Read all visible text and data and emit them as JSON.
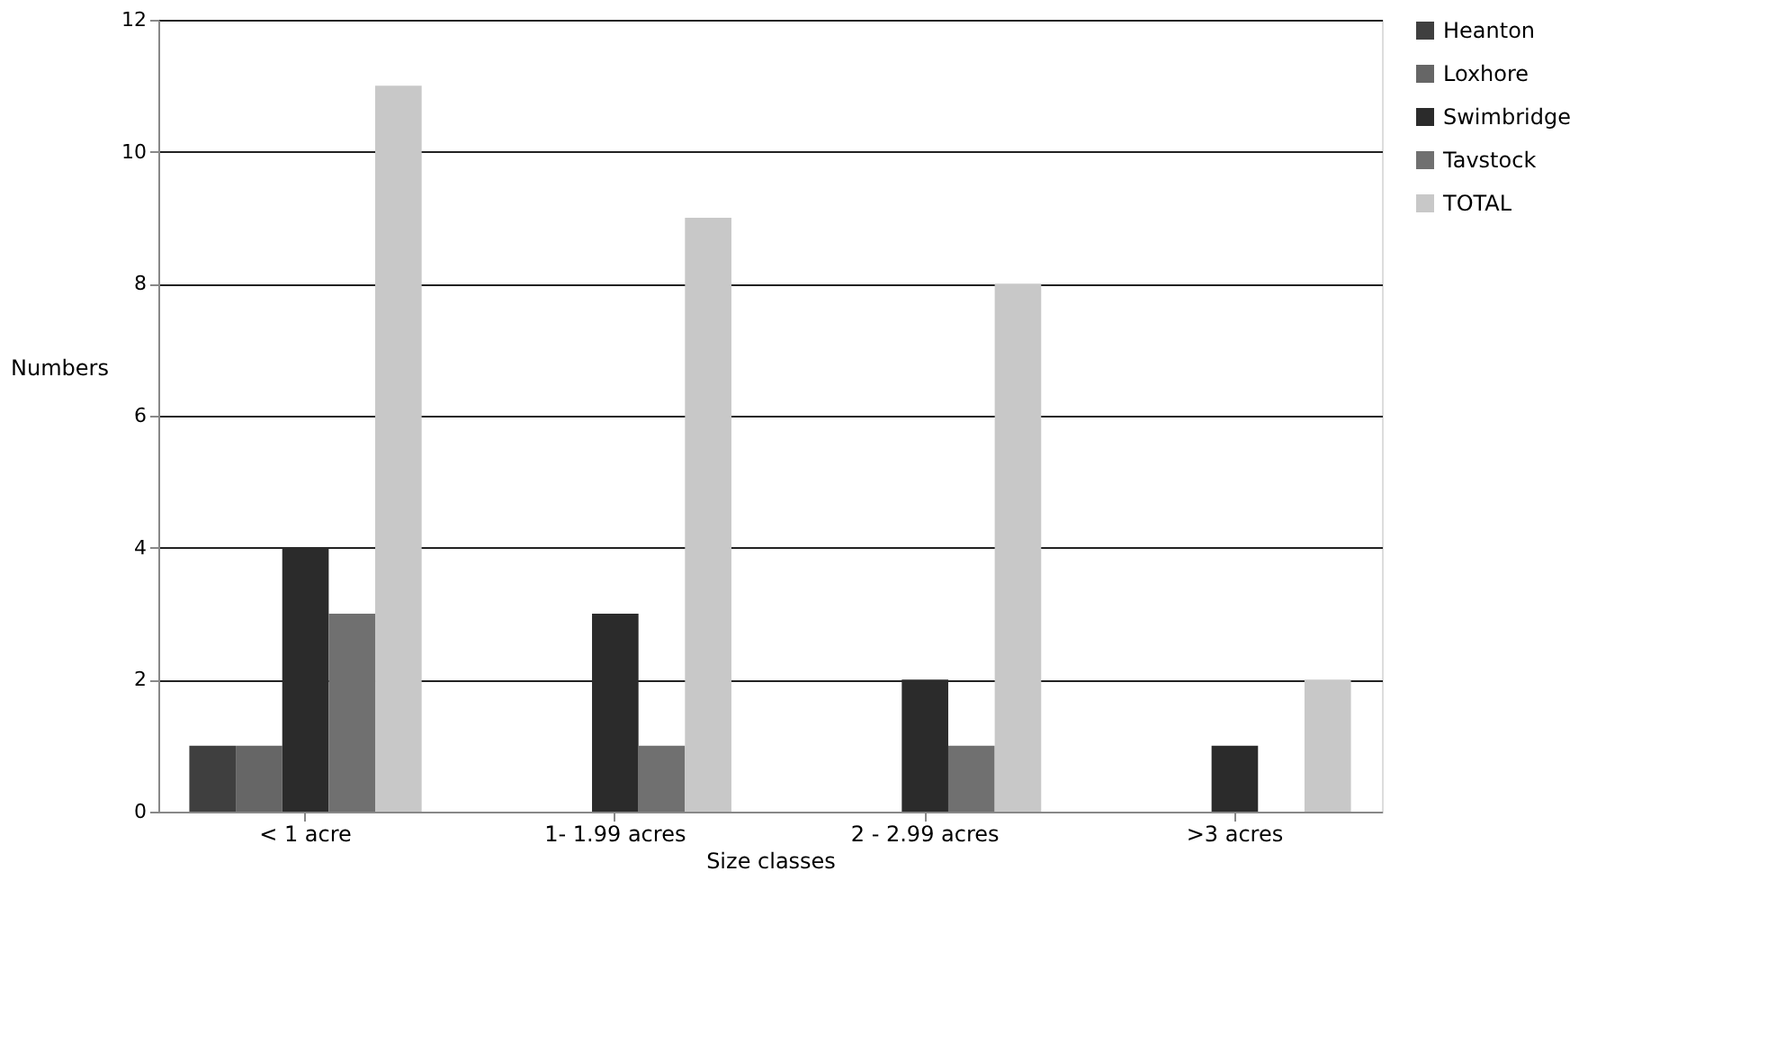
{
  "chart_data": {
    "type": "bar",
    "xlabel": "Size classes",
    "ylabel": "Numbers",
    "categories": [
      "< 1 acre",
      "1- 1.99 acres",
      "2 - 2.99 acres",
      ">3 acres"
    ],
    "series": [
      {
        "name": "Heanton",
        "color": "#3f3f3f",
        "values": [
          1,
          0,
          0,
          0
        ]
      },
      {
        "name": "Loxhore",
        "color": "#666666",
        "values": [
          1,
          0,
          0,
          0
        ]
      },
      {
        "name": "Swimbridge",
        "color": "#2b2b2b",
        "values": [
          4,
          3,
          2,
          1
        ]
      },
      {
        "name": "Tavstock",
        "color": "#707070",
        "values": [
          3,
          1,
          1,
          0
        ]
      },
      {
        "name": "TOTAL",
        "color": "#c8c8c8",
        "values": [
          11,
          9,
          8,
          2
        ]
      }
    ],
    "ylim": [
      0,
      12
    ],
    "yticks": [
      0,
      2,
      4,
      6,
      8,
      10,
      12
    ],
    "grid": "y",
    "legend": "right"
  }
}
